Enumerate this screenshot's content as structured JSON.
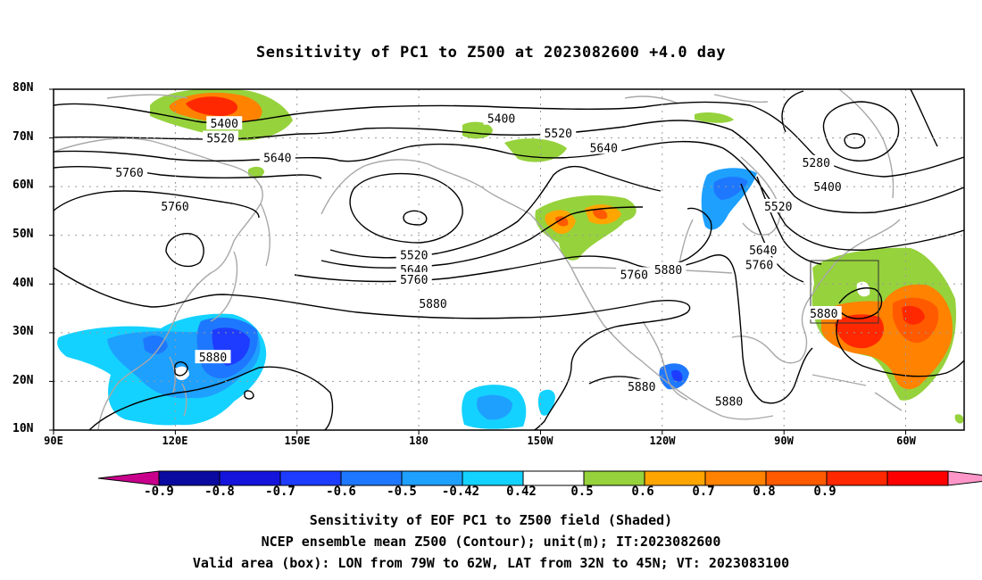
{
  "title": "Sensitivity of PC1 to Z500 at 2023082600 +4.0 day",
  "lat_ticks": [
    "80N",
    "70N",
    "60N",
    "50N",
    "40N",
    "30N",
    "20N",
    "10N"
  ],
  "lon_ticks": [
    "90E",
    "120E",
    "150E",
    "180",
    "150W",
    "120W",
    "90W",
    "60W"
  ],
  "contour_labels": [
    {
      "text": "5400",
      "lon": 135,
      "lat": 73
    },
    {
      "text": "5520",
      "lon": 134,
      "lat": 70
    },
    {
      "text": "5640",
      "lon": 149,
      "lat": 66
    },
    {
      "text": "5760",
      "lon": 110,
      "lat": 63
    },
    {
      "text": "5760",
      "lon": 122,
      "lat": 56
    },
    {
      "text": "5400",
      "lon": -152,
      "lat": 74
    },
    {
      "text": "5520",
      "lon": -137,
      "lat": 71
    },
    {
      "text": "5640",
      "lon": -125,
      "lat": 68
    },
    {
      "text": "5520",
      "lon": -175,
      "lat": 46
    },
    {
      "text": "5640",
      "lon": -175,
      "lat": 43
    },
    {
      "text": "5760",
      "lon": -175,
      "lat": 41
    },
    {
      "text": "5880",
      "lon": -170,
      "lat": 36
    },
    {
      "text": "5880",
      "lon": 132,
      "lat": 25
    },
    {
      "text": "5760",
      "lon": -117,
      "lat": 42
    },
    {
      "text": "5880",
      "lon": -108,
      "lat": 43
    },
    {
      "text": "5880",
      "lon": -115,
      "lat": 19
    },
    {
      "text": "5880",
      "lon": -92,
      "lat": 16
    },
    {
      "text": "5280",
      "lon": -69,
      "lat": 65
    },
    {
      "text": "5400",
      "lon": -66,
      "lat": 60
    },
    {
      "text": "5520",
      "lon": -79,
      "lat": 56
    },
    {
      "text": "5640",
      "lon": -83,
      "lat": 47
    },
    {
      "text": "5760",
      "lon": -84,
      "lat": 44
    },
    {
      "text": "5880",
      "lon": -67,
      "lat": 34
    }
  ],
  "colorbar": {
    "labels": [
      "-0.9",
      "-0.8",
      "-0.7",
      "-0.6",
      "-0.5",
      "-0.42",
      "0.42",
      "0.5",
      "0.6",
      "0.7",
      "0.8",
      "0.9"
    ],
    "colors": [
      "#c8008c",
      "#0a0aa0",
      "#1414dc",
      "#1e3cff",
      "#1e78ff",
      "#1ea0ff",
      "#14d2ff",
      "#ffffff",
      "#96d23c",
      "#ffa500",
      "#ff8200",
      "#ff5a00",
      "#ff2800",
      "#ff0000",
      "#ff96c8"
    ]
  },
  "valid_box": {
    "lon_w": -79,
    "lon_e": -62,
    "lat_s": 32,
    "lat_n": 45
  },
  "footer": [
    "Sensitivity of EOF PC1 to Z500 field (Shaded)",
    "NCEP ensemble mean Z500 (Contour); unit(m); IT:2023082600",
    "Valid area (box): LON from 79W to 62W, LAT from 32N to 45N; VT: 2023083100"
  ]
}
